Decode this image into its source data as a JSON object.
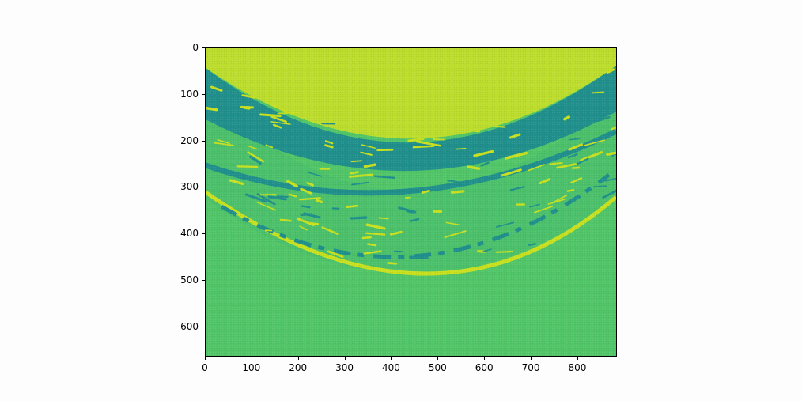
{
  "image": {
    "colormap_levels": [
      "#440154",
      "#21908d",
      "#3fbc73",
      "#bade28"
    ],
    "colors": {
      "top_region": "#bcdc2e",
      "dark_band": "#21908c",
      "mid_band": "#4cc06b",
      "bottom_region": "#52c568",
      "streak": "#c8e020"
    }
  },
  "axes": {
    "x_ticks": [
      "0",
      "100",
      "200",
      "300",
      "400",
      "500",
      "600",
      "700",
      "800"
    ],
    "y_ticks": [
      "0",
      "100",
      "200",
      "300",
      "400",
      "500",
      "600"
    ],
    "xlim": [
      0,
      885
    ],
    "ylim": [
      665,
      0
    ]
  }
}
